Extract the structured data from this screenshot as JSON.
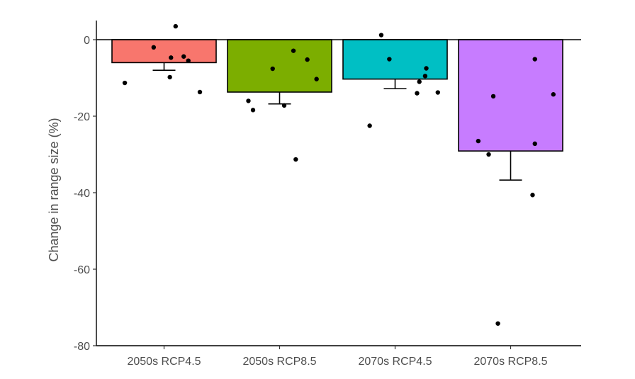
{
  "chart_data": {
    "type": "bar",
    "title": "",
    "xlabel": "",
    "ylabel": "Change in range size (%)",
    "categories": [
      "2050s RCP4.5",
      "2050s RCP8.5",
      "2070s RCP4.5",
      "2070s RCP8.5"
    ],
    "values": [
      -6.0,
      -13.7,
      -10.3,
      -29.1
    ],
    "error_lower": [
      -8.0,
      -16.8,
      -12.8,
      -36.7
    ],
    "colors": [
      "#F8766D",
      "#7CAE00",
      "#00BFC4",
      "#C77CFF"
    ],
    "ylim": [
      -80,
      5
    ],
    "yticks": [
      0,
      -20,
      -40,
      -60,
      -80
    ],
    "ytick_labels": [
      "0",
      "-20",
      "-40",
      "-60",
      "-80"
    ],
    "points": [
      [
        3.5,
        -2.0,
        -4.7,
        -4.4,
        -5.5,
        -9.8,
        -11.3,
        -13.7
      ],
      [
        -2.9,
        -5.2,
        -7.6,
        -10.3,
        -16.0,
        -17.2,
        -18.4,
        -31.3
      ],
      [
        1.2,
        -5.1,
        -7.5,
        -9.5,
        -11.0,
        -14.0,
        -13.8,
        -22.5
      ],
      [
        -5.1,
        -14.3,
        -14.8,
        -26.5,
        -27.2,
        -30.0,
        -40.6,
        -74.2
      ]
    ],
    "point_offsets": [
      [
        0.1,
        -0.09,
        0.06,
        0.17,
        0.21,
        0.05,
        -0.34,
        0.31
      ],
      [
        0.12,
        0.24,
        -0.06,
        0.32,
        -0.27,
        0.04,
        -0.23,
        0.14
      ],
      [
        -0.12,
        -0.05,
        0.27,
        0.26,
        0.21,
        0.19,
        0.37,
        -0.22
      ],
      [
        0.21,
        0.37,
        -0.15,
        -0.28,
        0.21,
        -0.19,
        0.19,
        -0.11
      ]
    ],
    "grid": false,
    "legend": "none",
    "zero_line": true
  }
}
